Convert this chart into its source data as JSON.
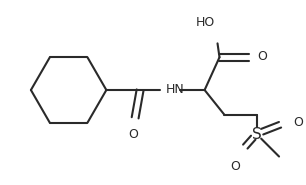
{
  "bg_color": "#ffffff",
  "line_color": "#2a2a2a",
  "text_color": "#2a2a2a",
  "line_width": 1.5,
  "font_size": 9.0,
  "figsize": [
    3.06,
    1.85
  ],
  "dpi": 100,
  "xlim": [
    0,
    306
  ],
  "ylim": [
    0,
    185
  ]
}
